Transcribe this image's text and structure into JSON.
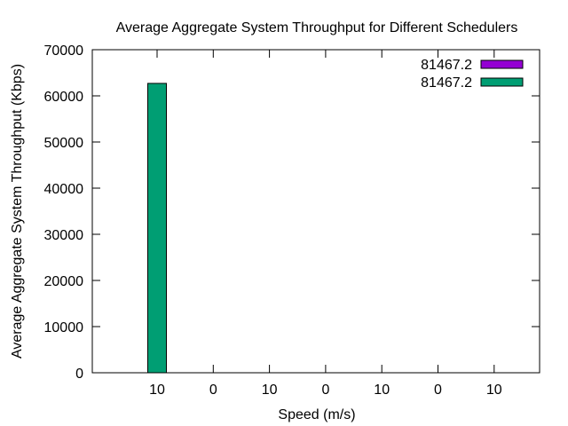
{
  "chart_data": {
    "type": "bar",
    "title": "Average Aggregate System Throughput for Different Schedulers",
    "xlabel": "Speed (m/s)",
    "ylabel": "Average Aggregate System Throughput (Kbps)",
    "ylim": [
      0,
      70000
    ],
    "yticks": [
      "0",
      "10000",
      "20000",
      "30000",
      "40000",
      "50000",
      "60000",
      "70000"
    ],
    "categories": [
      "10",
      "0",
      "10",
      "0",
      "10",
      "0",
      "10"
    ],
    "series": [
      {
        "name": "81467.2",
        "color": "#9400d3",
        "values": [
          0,
          0,
          0,
          0,
          0,
          0,
          0
        ]
      },
      {
        "name": "81467.2",
        "color": "#009e73",
        "values": [
          62700,
          0,
          0,
          0,
          0,
          0,
          0
        ]
      }
    ],
    "legend_position": "top-right",
    "grid": false
  }
}
